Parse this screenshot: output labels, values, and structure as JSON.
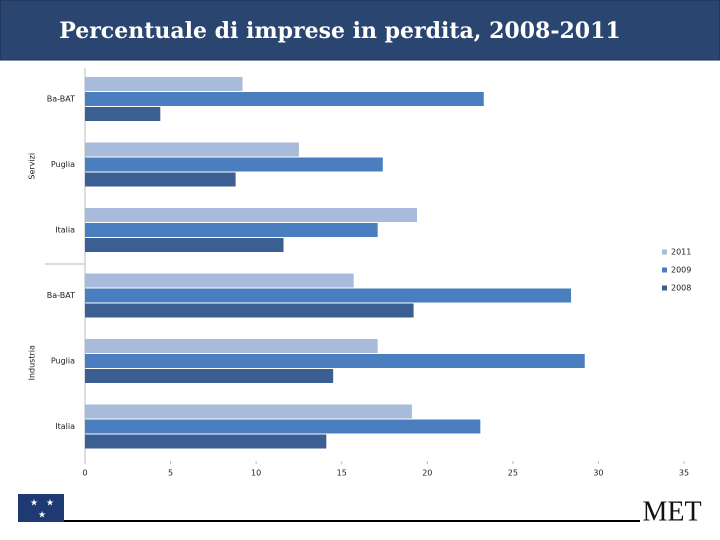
{
  "chart_data": {
    "type": "hbar",
    "title": "Percentuale di imprese in perdita, 2008-2011",
    "groups": [
      {
        "name": "Servizi",
        "categories": [
          "Ba-BAT",
          "Puglia",
          "Italia"
        ]
      },
      {
        "name": "Industria",
        "categories": [
          "Ba-BAT",
          "Puglia",
          "Italia"
        ]
      }
    ],
    "series": [
      {
        "name": "2011",
        "color": "#a8bbda",
        "values": [
          9.2,
          12.5,
          19.4,
          15.7,
          17.1,
          19.1
        ]
      },
      {
        "name": "2009",
        "color": "#4a7ebf",
        "values": [
          23.3,
          17.4,
          17.1,
          28.4,
          29.2,
          23.1
        ]
      },
      {
        "name": "2008",
        "color": "#3b5e93",
        "values": [
          4.4,
          8.8,
          11.6,
          19.2,
          14.5,
          14.1
        ]
      }
    ],
    "xlim": [
      0,
      35
    ],
    "xticks": [
      0,
      5,
      10,
      15,
      20,
      25,
      30,
      35
    ],
    "legend": "right"
  },
  "footer": {
    "brand": "MET"
  }
}
